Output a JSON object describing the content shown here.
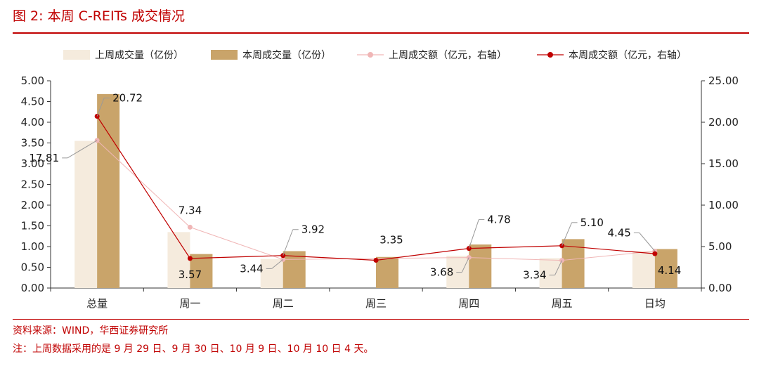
{
  "header": {
    "title": "图 2:  本周 C-REITs 成交情况"
  },
  "footer": {
    "source": "资料来源：WIND，华西证券研究所",
    "note": "注：上周数据采用的是 9 月 29 日、9 月 30 日、10 月 9 日、10 月 10 日 4 天。"
  },
  "colors": {
    "accent": "#c00000",
    "last_week_bar": "#f5ebdd",
    "this_week_bar": "#c9a46a",
    "last_week_line": "#f0b6b6",
    "this_week_line": "#c00000"
  },
  "chart_data": {
    "type": "bar",
    "categories": [
      "总量",
      "周一",
      "周二",
      "周三",
      "周四",
      "周五",
      "日均"
    ],
    "series": [
      {
        "name": "上周成交量（亿份）",
        "kind": "bar",
        "axis": "left",
        "values": [
          3.55,
          1.35,
          0.7,
          0.0,
          0.78,
          0.72,
          0.89
        ]
      },
      {
        "name": "本周成交量（亿份）",
        "kind": "bar",
        "axis": "left",
        "values": [
          4.68,
          0.82,
          0.89,
          0.75,
          1.05,
          1.18,
          0.94
        ]
      },
      {
        "name": "上周成交额（亿元，右轴）",
        "kind": "line",
        "axis": "right",
        "values": [
          17.81,
          7.34,
          3.44,
          null,
          3.68,
          3.34,
          4.45
        ]
      },
      {
        "name": "本周成交额（亿元，右轴）",
        "kind": "line",
        "axis": "right",
        "values": [
          20.72,
          3.57,
          3.92,
          3.35,
          4.78,
          5.1,
          4.14
        ]
      }
    ],
    "ylim_left": [
      0,
      5
    ],
    "ylim_right": [
      0,
      25
    ],
    "left_ticks": [
      "0.00",
      "0.50",
      "1.00",
      "1.50",
      "2.00",
      "2.50",
      "3.00",
      "3.50",
      "4.00",
      "4.50",
      "5.00"
    ],
    "right_ticks": [
      "0.00",
      "5.00",
      "10.00",
      "15.00",
      "20.00",
      "25.00"
    ],
    "data_labels": [
      {
        "text": "20.72",
        "series": 3,
        "index": 0
      },
      {
        "text": "17.81",
        "series": 2,
        "index": 0
      },
      {
        "text": "7.34",
        "series": 2,
        "index": 1
      },
      {
        "text": "3.57",
        "series": 3,
        "index": 1
      },
      {
        "text": "3.92",
        "series": 3,
        "index": 2
      },
      {
        "text": "3.44",
        "series": 2,
        "index": 2
      },
      {
        "text": "3.35",
        "series": 3,
        "index": 3
      },
      {
        "text": "4.78",
        "series": 3,
        "index": 4
      },
      {
        "text": "3.68",
        "series": 2,
        "index": 4
      },
      {
        "text": "5.10",
        "series": 3,
        "index": 5
      },
      {
        "text": "3.34",
        "series": 2,
        "index": 5
      },
      {
        "text": "4.45",
        "series": 2,
        "index": 6
      },
      {
        "text": "4.14",
        "series": 3,
        "index": 6
      }
    ],
    "legend_position": "top",
    "grid": false
  }
}
